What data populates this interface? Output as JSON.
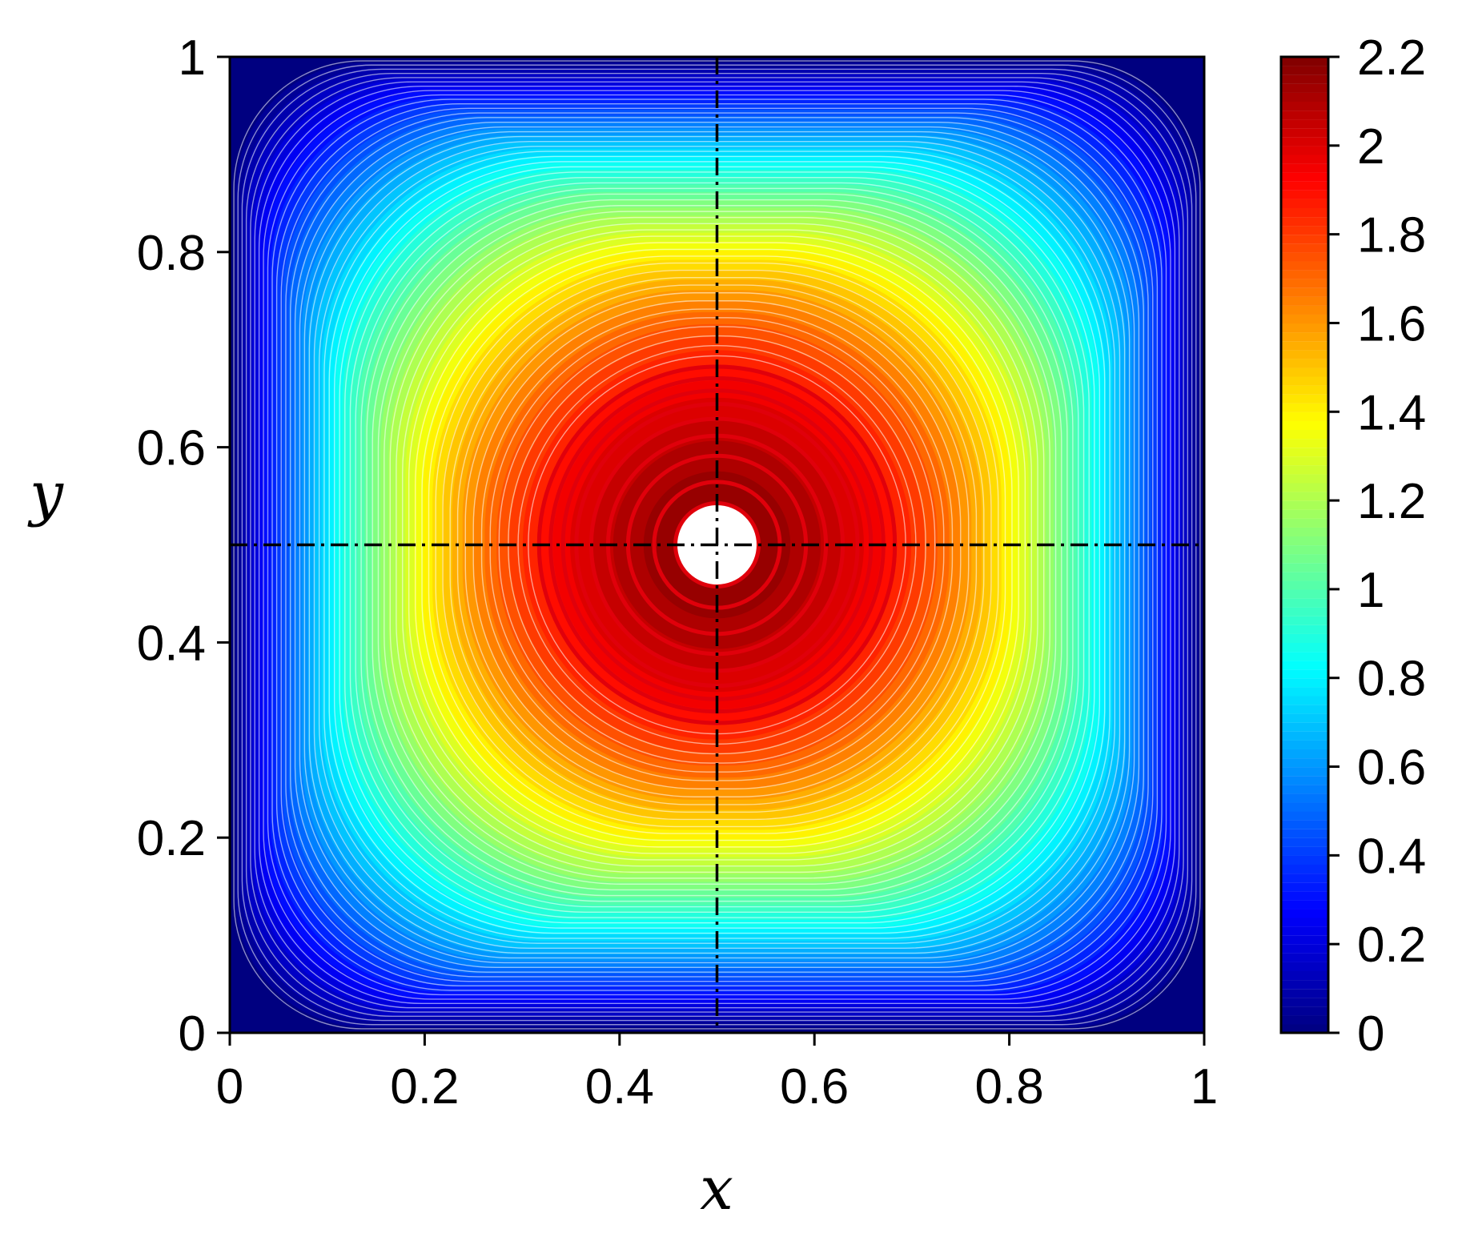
{
  "chart_data": {
    "type": "heatmap",
    "title": "",
    "xlabel": "x",
    "ylabel": "y",
    "xlim": [
      0,
      1
    ],
    "ylim": [
      0,
      1
    ],
    "x_ticks": [
      "0",
      "0.2",
      "0.4",
      "0.6",
      "0.8",
      "1"
    ],
    "y_ticks": [
      "0",
      "0.2",
      "0.4",
      "0.6",
      "0.8",
      "1"
    ],
    "x_tick_values": [
      0,
      0.2,
      0.4,
      0.6,
      0.8,
      1
    ],
    "y_tick_values": [
      0,
      0.2,
      0.4,
      0.6,
      0.8,
      1
    ],
    "colorbar": {
      "min": 0,
      "max": 2.2,
      "colormap": "jet",
      "tick_values": [
        0,
        0.2,
        0.4,
        0.6,
        0.8,
        1,
        1.2,
        1.4,
        1.6,
        1.8,
        2,
        2.2
      ],
      "tick_labels": [
        "0",
        "0.2",
        "0.4",
        "0.6",
        "0.8",
        "1",
        "1.2",
        "1.4",
        "1.6",
        "1.8",
        "2",
        "2.2"
      ]
    },
    "field": {
      "description_of_shape": "filled contours with contour lines; maximum at the center, zero on the boundary",
      "center": [
        0.5,
        0.5
      ],
      "max_value": 2.2,
      "boundary_value": 0
    },
    "reference_lines": [
      {
        "orientation": "vertical",
        "value": 0.5,
        "style": "dash-dot",
        "color": "#000000"
      },
      {
        "orientation": "horizontal",
        "value": 0.5,
        "style": "dash-dot",
        "color": "#000000"
      }
    ],
    "grid": false,
    "legend": "none"
  }
}
